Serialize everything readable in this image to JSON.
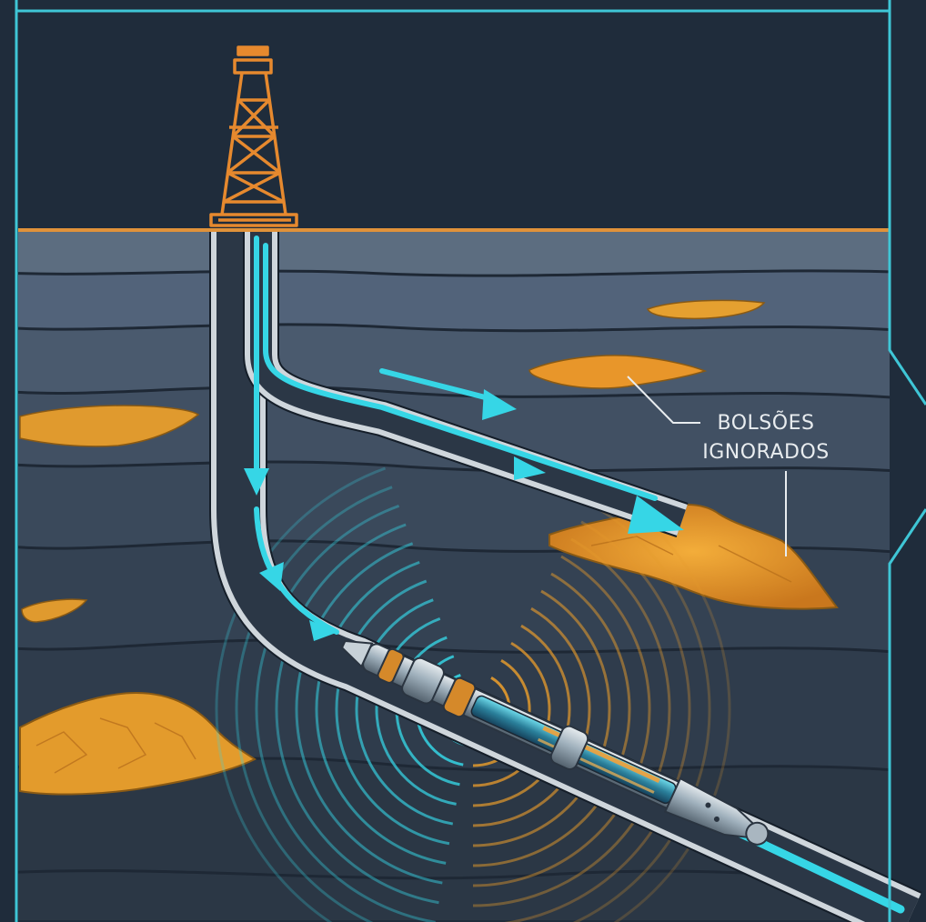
{
  "annotation": {
    "line1": "BOLSÕES",
    "line2": "IGNORADOS"
  },
  "colors": {
    "sky": "#1f2c3b",
    "frame": "#3fc6d6",
    "surface_line": "#e0923a",
    "rig": "#e6892e",
    "oil": "#e59a2c",
    "flow": "#36d6e6",
    "rock_light": "#55667a",
    "rock_mid": "#465668",
    "rock_dark": "#3a4858",
    "rock_deep": "#2f3c4b",
    "pipe_wall": "#cfd6dc"
  }
}
